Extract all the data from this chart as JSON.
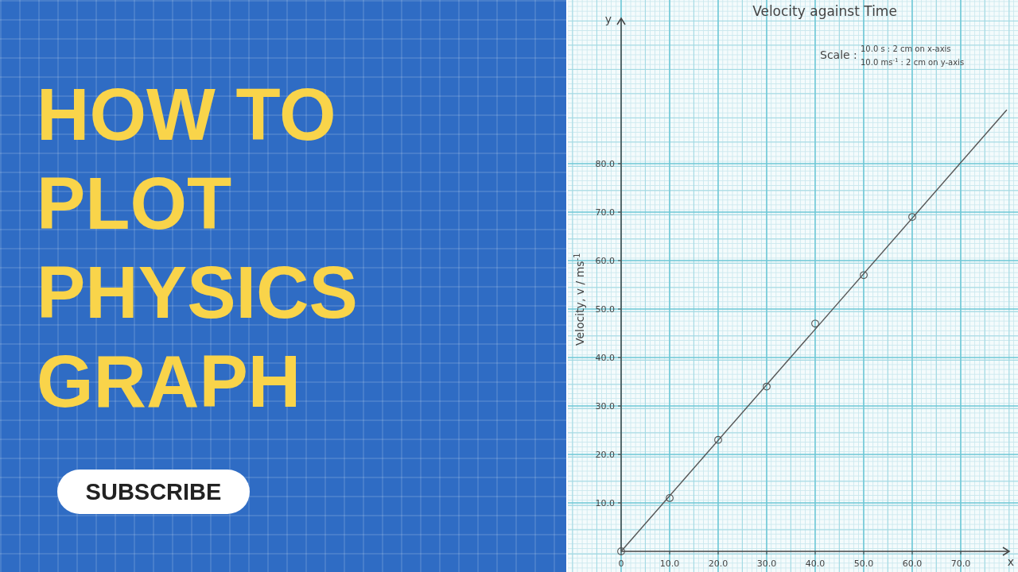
{
  "chart_data": {
    "type": "scatter",
    "title": "Velocity against Time",
    "ylabel": "Velocity, v / ms$^{-1}$",
    "xlabel": "x",
    "annotations": [
      "HOW TO PLOT PHYSICS GRAPH",
      "SUBSCRIBE",
      "Scale :",
      "10.0 s : 2 cm on x-axis",
      "10.0 ms$^{-1}$ : 2 cm on y-axis",
      "y"
    ],
    "series": [
      {
        "type": "scatter",
        "color": "#555555",
        "marker": "circle",
        "x": [
          0,
          10,
          20,
          30,
          40,
          50,
          60
        ],
        "values": [
          0,
          11,
          23,
          34,
          47,
          57,
          69
        ]
      },
      {
        "type": "line",
        "color": "#555555",
        "marker": "none",
        "line_style": "solid",
        "x": [
          0,
          79.5
        ],
        "values": [
          0,
          91.1
        ]
      }
    ],
    "xlim": [
      0,
      80
    ],
    "ylim": [
      0,
      110
    ],
    "xticks": [
      {
        "value": 0,
        "label": "0"
      },
      {
        "value": 10,
        "label": "10.0"
      },
      {
        "value": 20,
        "label": "20.0"
      },
      {
        "value": 30,
        "label": "30.0"
      },
      {
        "value": 40,
        "label": "40.0"
      },
      {
        "value": 50,
        "label": "50.0"
      },
      {
        "value": 60,
        "label": "60.0"
      },
      {
        "value": 70,
        "label": "70.0"
      }
    ],
    "yticks": [
      {
        "value": 10,
        "label": "10.0"
      },
      {
        "value": 20,
        "label": "20.0"
      },
      {
        "value": 30,
        "label": "30.0"
      },
      {
        "value": 40,
        "label": "40.0"
      },
      {
        "value": 50,
        "label": "50.0"
      },
      {
        "value": 60,
        "label": "60.0"
      },
      {
        "value": 70,
        "label": "70.0"
      },
      {
        "value": 80,
        "label": "80.0"
      }
    ],
    "grid": true
  }
}
